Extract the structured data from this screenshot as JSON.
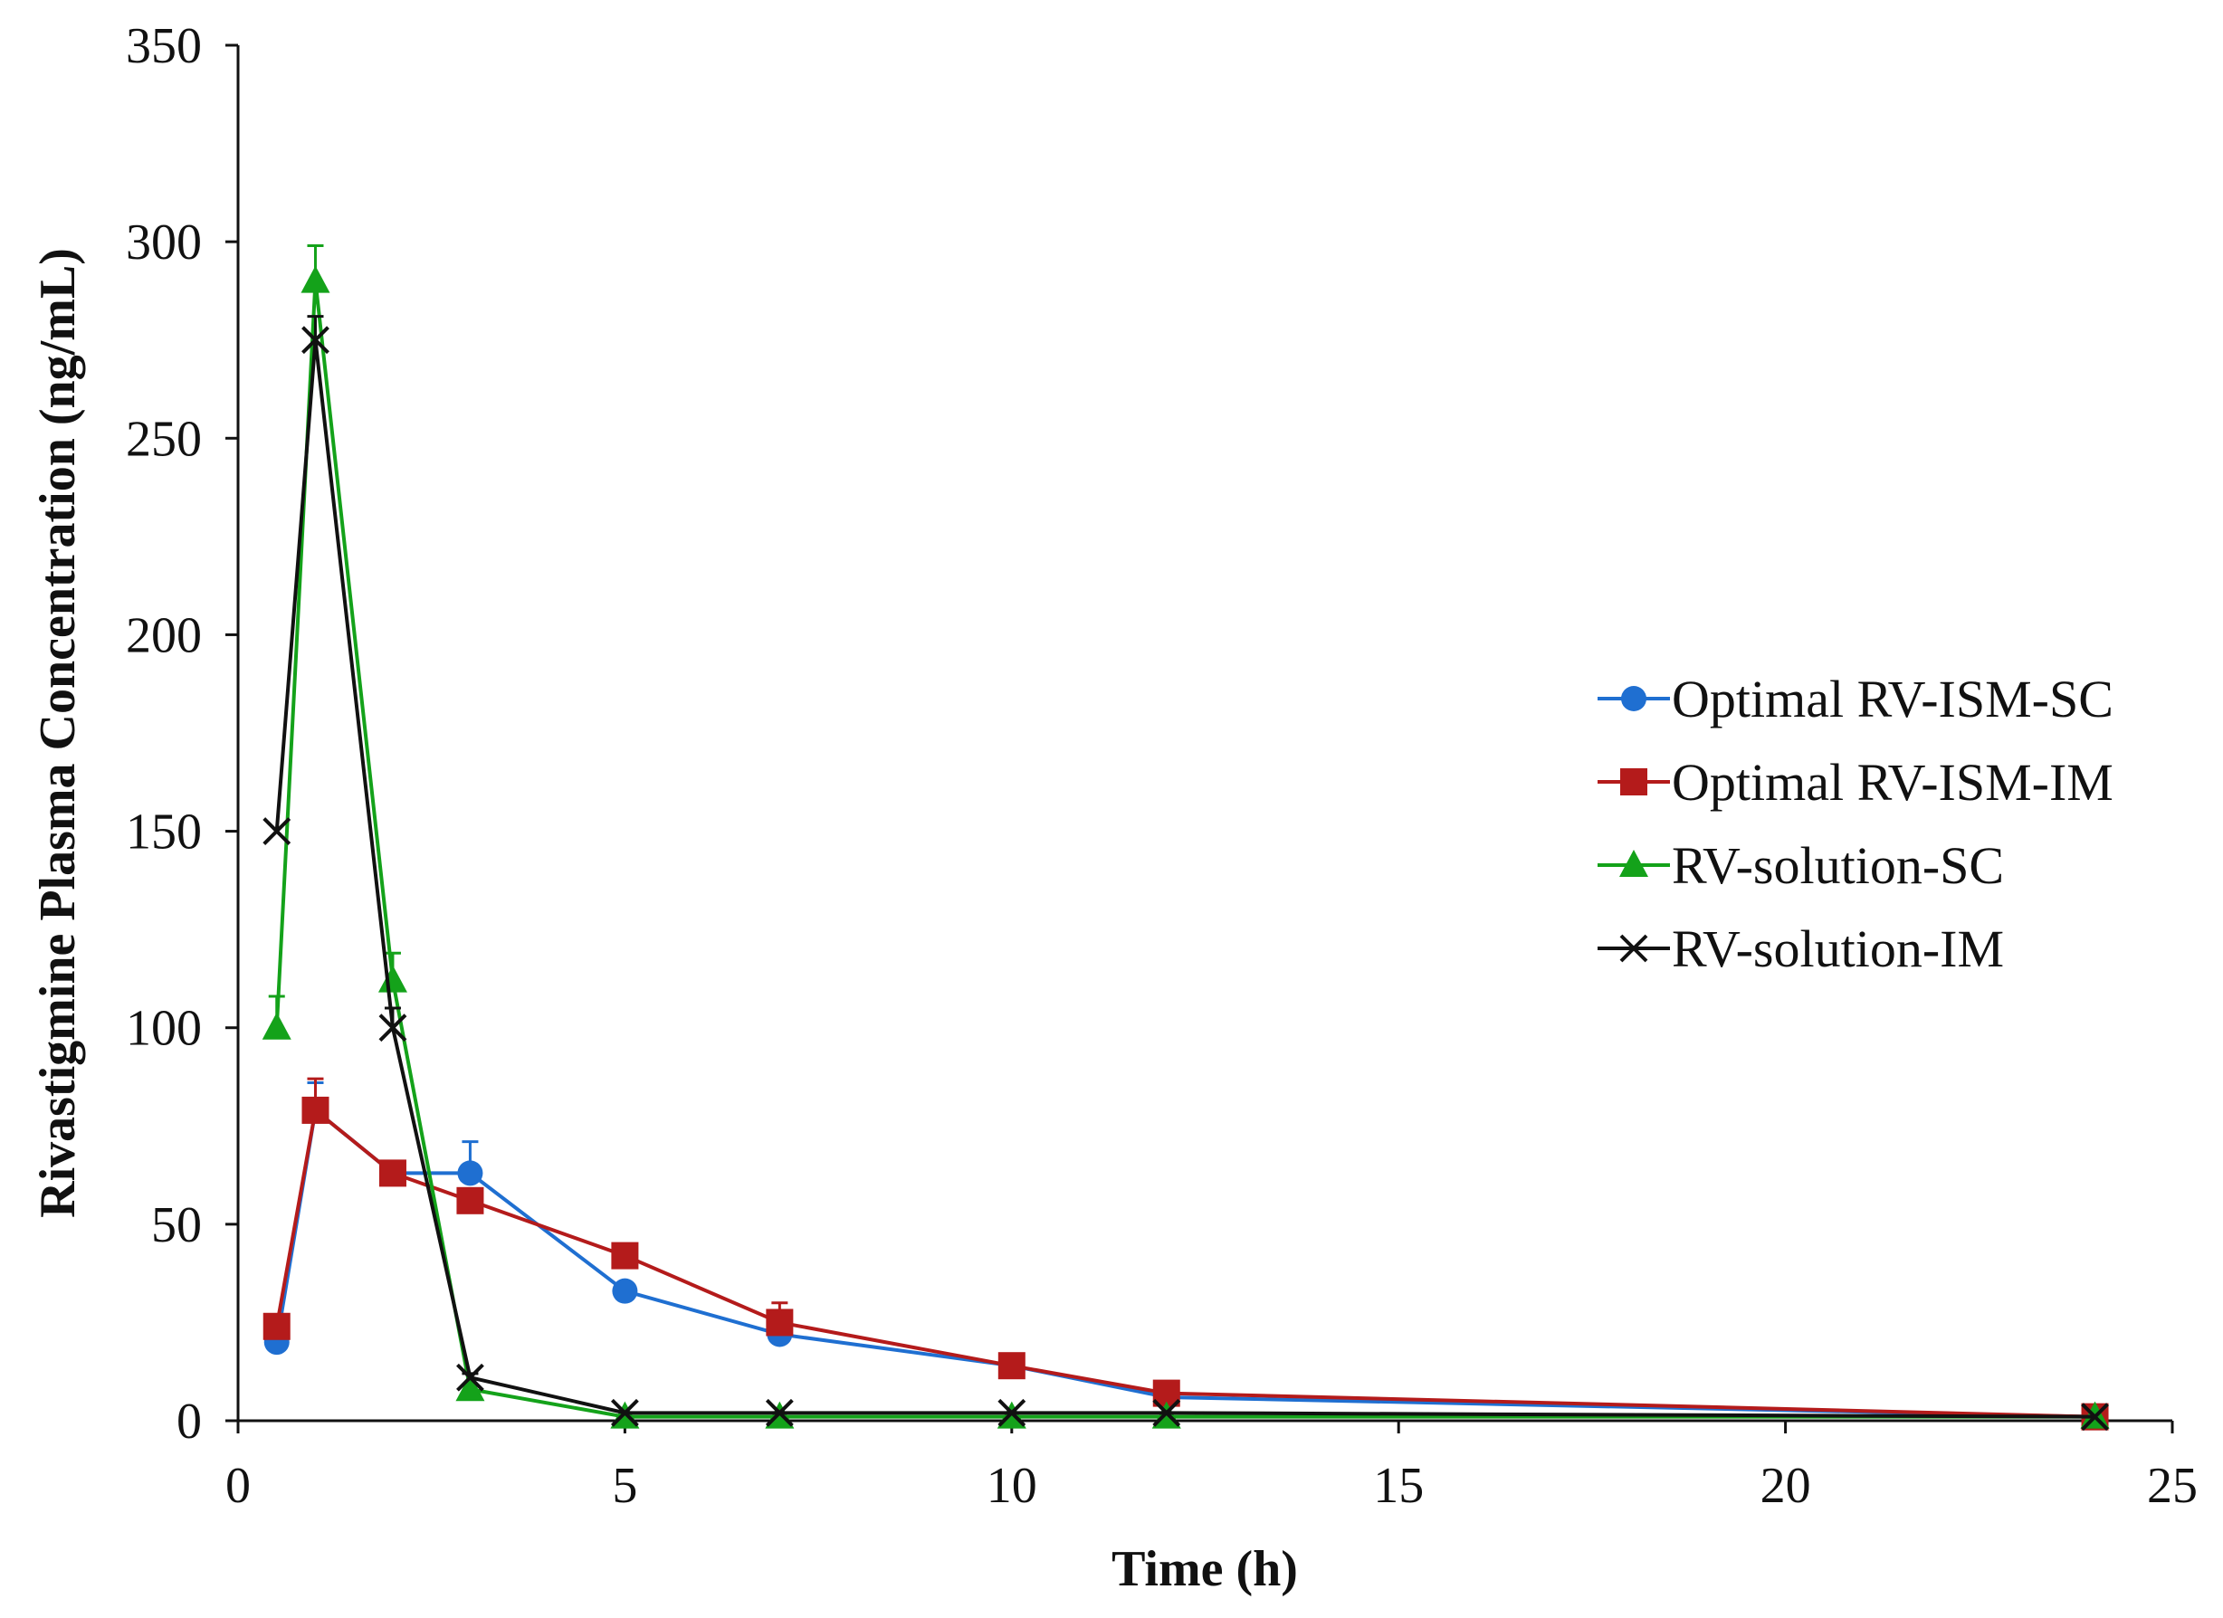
{
  "chart_data": {
    "type": "line",
    "title": "",
    "xlabel": "Time (h)",
    "ylabel": "Rivastigmine Plasma Concentration (ng/mL)",
    "xlim": [
      0,
      25
    ],
    "ylim": [
      0,
      350
    ],
    "xticks": [
      0,
      5,
      10,
      15,
      20,
      25
    ],
    "yticks": [
      0,
      50,
      100,
      150,
      200,
      250,
      300,
      350
    ],
    "grid": false,
    "legend_position": "right",
    "x": [
      0.5,
      1,
      2,
      3,
      5,
      7,
      10,
      12,
      24
    ],
    "series": [
      {
        "name": "Optimal RV-ISM-SC",
        "color": "#1f6fd1",
        "marker": "circle",
        "values": [
          20,
          79,
          63,
          63,
          33,
          22,
          14,
          6,
          1
        ],
        "errors": [
          0,
          7,
          3,
          8,
          2,
          2,
          1,
          1,
          0
        ]
      },
      {
        "name": "Optimal RV-ISM-IM",
        "color": "#b41b1b",
        "marker": "square",
        "values": [
          24,
          79,
          63,
          56,
          42,
          25,
          14,
          7,
          1
        ],
        "errors": [
          0,
          8,
          3,
          2,
          2,
          5,
          1,
          1,
          0
        ]
      },
      {
        "name": "RV-solution-SC",
        "color": "#14a21a",
        "marker": "triangle",
        "values": [
          100,
          290,
          112,
          8,
          1,
          1,
          1,
          1,
          1
        ],
        "errors": [
          8,
          9,
          7,
          1,
          0,
          0,
          0,
          0,
          0
        ]
      },
      {
        "name": "RV-solution-IM",
        "color": "#111111",
        "marker": "x",
        "values": [
          150,
          275,
          100,
          11,
          2,
          2,
          2,
          2,
          1
        ],
        "errors": [
          0,
          6,
          5,
          1,
          0,
          0,
          0,
          0,
          0
        ]
      }
    ]
  }
}
